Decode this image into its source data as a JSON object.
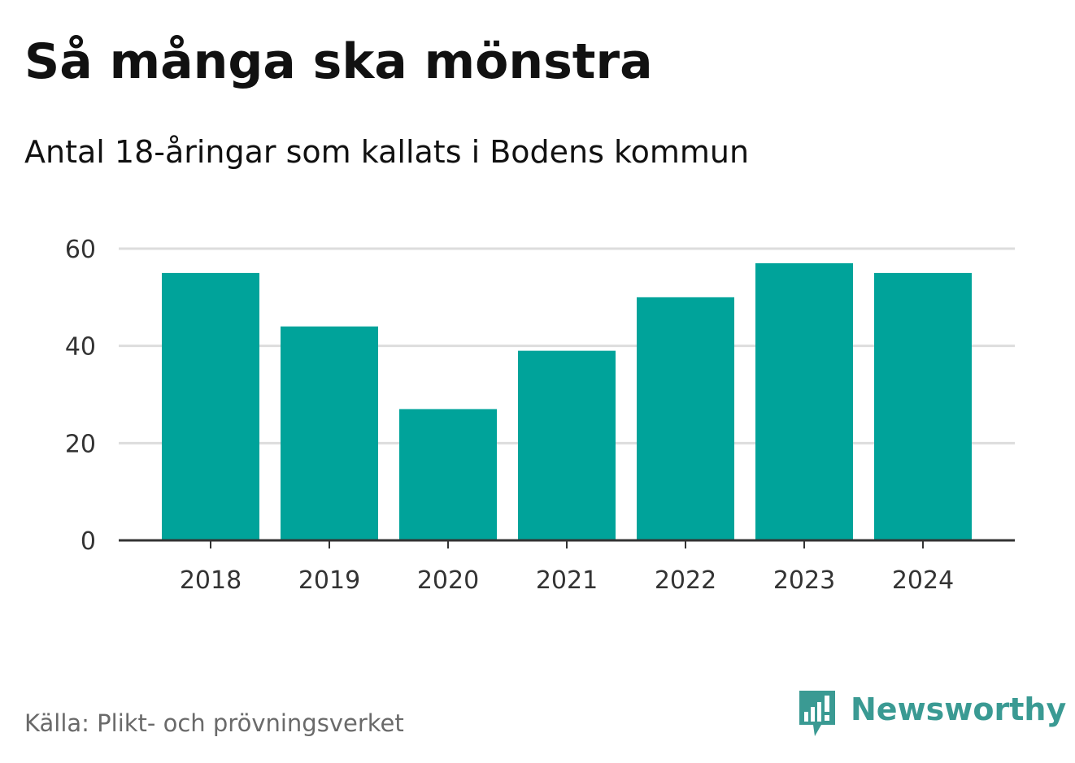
{
  "header": {
    "title": "Så många ska mönstra",
    "subtitle": "Antal 18-åringar som kallats i Bodens kommun"
  },
  "chart_data": {
    "type": "bar",
    "categories": [
      "2018",
      "2019",
      "2020",
      "2021",
      "2022",
      "2023",
      "2024"
    ],
    "values": [
      55,
      44,
      27,
      39,
      50,
      57,
      55
    ],
    "ylim": [
      0,
      60
    ],
    "yticks": [
      0,
      20,
      40,
      60
    ],
    "xlabel": "",
    "ylabel": "",
    "grid": true,
    "bar_color": "#00a39a",
    "grid_color": "#dddddd",
    "axis_color": "#333333"
  },
  "footer": {
    "source": "Källa: Plikt- och prövningsverket",
    "brand": "Newsworthy",
    "brand_icon": "newsworthy-bar-chart-logo-icon",
    "brand_color": "#3a9a93"
  }
}
